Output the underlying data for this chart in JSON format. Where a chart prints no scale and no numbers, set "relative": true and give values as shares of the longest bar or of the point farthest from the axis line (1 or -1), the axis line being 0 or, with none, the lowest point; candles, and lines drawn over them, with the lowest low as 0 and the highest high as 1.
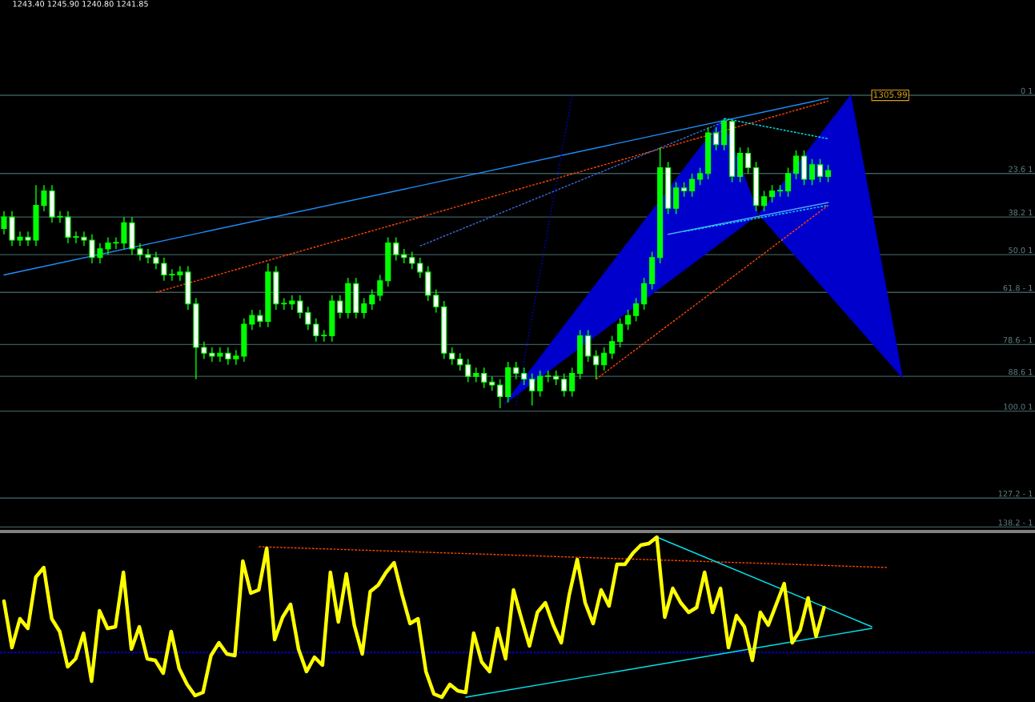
{
  "chart_data": [
    {
      "type": "candlestick",
      "relative": true,
      "tick_labels": false,
      "annotations": [
        "1243.40 1245.90 1240.80 1241.85",
        {
          "text": "1305.99",
          "y": 1.08
        },
        "0 1",
        "23.6 1",
        "38.2 1",
        "50.0 1",
        "61.8 - 1",
        "78.6 - 1",
        "88.6 1",
        "100.0 1",
        "127.2 - 1",
        "138.2 - 1"
      ],
      "categories": [
        null,
        null,
        null,
        null,
        null,
        null,
        null,
        null,
        null,
        null,
        null,
        null,
        null,
        null,
        null,
        null,
        null,
        null,
        null,
        null,
        null,
        null,
        null,
        null,
        null,
        null,
        null,
        null,
        null,
        null,
        null,
        null,
        null,
        null,
        null,
        null,
        null,
        null,
        null,
        null,
        null,
        null,
        null,
        null,
        null,
        null,
        null,
        null,
        null,
        null,
        null,
        null,
        null,
        null,
        null,
        null,
        null,
        null,
        null,
        null,
        null,
        null,
        null,
        null,
        null,
        null,
        null,
        null,
        null,
        null,
        null,
        null,
        null,
        null,
        null,
        null,
        null,
        null,
        null,
        null,
        null,
        null,
        null,
        null,
        null,
        null,
        null,
        null,
        null,
        null,
        null,
        null,
        null,
        null,
        null,
        null,
        null,
        null,
        null,
        null,
        null,
        null,
        null,
        null
      ],
      "ohlc": [
        [
          0.62,
          0.68,
          0.6,
          0.66
        ],
        [
          0.66,
          0.68,
          0.56,
          0.58
        ],
        [
          0.58,
          0.61,
          0.56,
          0.59
        ],
        [
          0.59,
          0.61,
          0.56,
          0.58
        ],
        [
          0.58,
          0.77,
          0.56,
          0.7
        ],
        [
          0.7,
          0.77,
          0.68,
          0.75
        ],
        [
          0.75,
          0.77,
          0.64,
          0.66
        ],
        [
          0.66,
          0.68,
          0.64,
          0.66
        ],
        [
          0.66,
          0.68,
          0.57,
          0.59
        ],
        [
          0.59,
          0.61,
          0.57,
          0.59
        ],
        [
          0.59,
          0.61,
          0.56,
          0.58
        ],
        [
          0.58,
          0.6,
          0.5,
          0.52
        ],
        [
          0.52,
          0.57,
          0.5,
          0.55
        ],
        [
          0.55,
          0.59,
          0.53,
          0.57
        ],
        [
          0.57,
          0.59,
          0.55,
          0.57
        ],
        [
          0.57,
          0.66,
          0.55,
          0.64
        ],
        [
          0.64,
          0.66,
          0.53,
          0.55
        ],
        [
          0.55,
          0.57,
          0.51,
          0.53
        ],
        [
          0.53,
          0.55,
          0.5,
          0.52
        ],
        [
          0.52,
          0.54,
          0.48,
          0.5
        ],
        [
          0.5,
          0.52,
          0.44,
          0.46
        ],
        [
          0.46,
          0.48,
          0.44,
          0.46
        ],
        [
          0.46,
          0.49,
          0.44,
          0.47
        ],
        [
          0.47,
          0.49,
          0.34,
          0.36
        ],
        [
          0.36,
          0.38,
          0.1,
          0.21
        ],
        [
          0.21,
          0.23,
          0.17,
          0.19
        ],
        [
          0.19,
          0.21,
          0.16,
          0.18
        ],
        [
          0.18,
          0.21,
          0.16,
          0.19
        ],
        [
          0.19,
          0.21,
          0.15,
          0.17
        ],
        [
          0.17,
          0.2,
          0.15,
          0.18
        ],
        [
          0.18,
          0.31,
          0.16,
          0.29
        ],
        [
          0.29,
          0.34,
          0.27,
          0.32
        ],
        [
          0.32,
          0.34,
          0.28,
          0.3
        ],
        [
          0.3,
          0.5,
          0.28,
          0.47
        ],
        [
          0.47,
          0.49,
          0.34,
          0.36
        ],
        [
          0.36,
          0.38,
          0.34,
          0.36
        ],
        [
          0.36,
          0.39,
          0.34,
          0.37
        ],
        [
          0.37,
          0.39,
          0.31,
          0.33
        ],
        [
          0.33,
          0.35,
          0.27,
          0.29
        ],
        [
          0.29,
          0.31,
          0.23,
          0.25
        ],
        [
          0.25,
          0.27,
          0.23,
          0.25
        ],
        [
          0.25,
          0.39,
          0.23,
          0.37
        ],
        [
          0.37,
          0.39,
          0.31,
          0.33
        ],
        [
          0.33,
          0.45,
          0.31,
          0.43
        ],
        [
          0.43,
          0.45,
          0.31,
          0.33
        ],
        [
          0.33,
          0.38,
          0.31,
          0.36
        ],
        [
          0.36,
          0.41,
          0.34,
          0.39
        ],
        [
          0.39,
          0.46,
          0.37,
          0.44
        ],
        [
          0.44,
          0.59,
          0.42,
          0.57
        ],
        [
          0.57,
          0.59,
          0.51,
          0.53
        ],
        [
          0.53,
          0.55,
          0.5,
          0.52
        ],
        [
          0.52,
          0.54,
          0.48,
          0.5
        ],
        [
          0.5,
          0.52,
          0.45,
          0.47
        ],
        [
          0.47,
          0.49,
          0.37,
          0.39
        ],
        [
          0.39,
          0.41,
          0.33,
          0.35
        ],
        [
          0.35,
          0.37,
          0.17,
          0.19
        ],
        [
          0.19,
          0.21,
          0.15,
          0.17
        ],
        [
          0.17,
          0.19,
          0.13,
          0.15
        ],
        [
          0.15,
          0.17,
          0.09,
          0.11
        ],
        [
          0.11,
          0.14,
          0.09,
          0.12
        ],
        [
          0.12,
          0.14,
          0.07,
          0.09
        ],
        [
          0.09,
          0.11,
          0.06,
          0.08
        ],
        [
          0.08,
          0.1,
          0.0,
          0.04
        ],
        [
          0.04,
          0.16,
          0.02,
          0.14
        ],
        [
          0.14,
          0.16,
          0.1,
          0.12
        ],
        [
          0.12,
          0.14,
          0.08,
          0.1
        ],
        [
          0.1,
          0.12,
          0.01,
          0.06
        ],
        [
          0.06,
          0.13,
          0.04,
          0.11
        ],
        [
          0.11,
          0.13,
          0.09,
          0.11
        ],
        [
          0.11,
          0.13,
          0.08,
          0.1
        ],
        [
          0.1,
          0.12,
          0.04,
          0.06
        ],
        [
          0.06,
          0.14,
          0.04,
          0.12
        ],
        [
          0.12,
          0.27,
          0.1,
          0.25
        ],
        [
          0.25,
          0.27,
          0.16,
          0.18
        ],
        [
          0.18,
          0.2,
          0.1,
          0.15
        ],
        [
          0.15,
          0.21,
          0.13,
          0.19
        ],
        [
          0.19,
          0.25,
          0.17,
          0.23
        ],
        [
          0.23,
          0.31,
          0.21,
          0.29
        ],
        [
          0.29,
          0.34,
          0.27,
          0.32
        ],
        [
          0.32,
          0.38,
          0.3,
          0.36
        ],
        [
          0.36,
          0.45,
          0.34,
          0.43
        ],
        [
          0.43,
          0.54,
          0.41,
          0.52
        ],
        [
          0.52,
          0.9,
          0.5,
          0.83
        ],
        [
          0.83,
          0.85,
          0.67,
          0.69
        ],
        [
          0.69,
          0.78,
          0.67,
          0.76
        ],
        [
          0.76,
          0.78,
          0.73,
          0.75
        ],
        [
          0.75,
          0.81,
          0.73,
          0.79
        ],
        [
          0.79,
          0.83,
          0.77,
          0.81
        ],
        [
          0.81,
          0.97,
          0.79,
          0.95
        ],
        [
          0.95,
          0.97,
          0.89,
          0.91
        ],
        [
          0.91,
          1.0,
          0.89,
          0.99
        ],
        [
          0.99,
          0.99,
          0.78,
          0.8
        ],
        [
          0.8,
          0.9,
          0.78,
          0.88
        ],
        [
          0.88,
          0.9,
          0.81,
          0.83
        ],
        [
          0.83,
          0.85,
          0.68,
          0.7
        ],
        [
          0.7,
          0.75,
          0.68,
          0.73
        ],
        [
          0.73,
          0.77,
          0.71,
          0.75
        ],
        [
          0.75,
          0.77,
          0.73,
          0.75
        ],
        [
          0.75,
          0.83,
          0.73,
          0.81
        ],
        [
          0.81,
          0.89,
          0.79,
          0.87
        ],
        [
          0.87,
          0.89,
          0.77,
          0.79
        ],
        [
          0.79,
          0.86,
          0.77,
          0.84
        ],
        [
          0.84,
          0.86,
          0.78,
          0.8
        ],
        [
          0.8,
          0.84,
          0.78,
          0.82
        ]
      ],
      "series": [
        {
          "type": "line",
          "color": "#1e90ff",
          "line_style": "solid",
          "values": [
            0.46,
            null,
            null,
            null,
            null,
            null,
            null,
            null,
            null,
            null,
            null,
            null,
            null,
            null,
            null,
            null,
            null,
            null,
            null,
            null,
            null,
            null,
            null,
            null,
            null,
            null,
            null,
            null,
            null,
            null,
            null,
            null,
            null,
            null,
            null,
            null,
            null,
            null,
            null,
            null,
            null,
            null,
            null,
            null,
            null,
            null,
            null,
            null,
            null,
            null,
            null,
            null,
            null,
            null,
            null,
            null,
            null,
            null,
            null,
            null,
            null,
            null,
            null,
            null,
            null,
            null,
            null,
            null,
            null,
            null,
            null,
            null,
            null,
            null,
            null,
            null,
            null,
            null,
            null,
            null,
            null,
            null,
            null,
            null,
            null,
            null,
            null,
            null,
            null,
            null,
            null,
            null,
            null,
            null,
            null,
            null,
            null,
            null,
            null,
            null,
            null,
            null,
            null,
            1.07
          ]
        },
        {
          "type": "line",
          "color": "#5aa0ff",
          "line_style": "solid",
          "values": [
            null,
            null,
            null,
            null,
            null,
            null,
            null,
            null,
            null,
            null,
            null,
            null,
            null,
            null,
            null,
            null,
            null,
            null,
            null,
            null,
            null,
            null,
            null,
            null,
            null,
            null,
            null,
            null,
            null,
            null,
            null,
            null,
            null,
            null,
            null,
            null,
            null,
            null,
            null,
            null,
            null,
            null,
            null,
            null,
            null,
            null,
            null,
            null,
            null,
            null,
            null,
            null,
            null,
            null,
            null,
            null,
            null,
            null,
            null,
            null,
            null,
            null,
            null,
            null,
            null,
            null,
            null,
            null,
            null,
            null,
            null,
            null,
            null,
            null,
            null,
            null,
            null,
            null,
            null,
            null,
            null,
            null,
            null,
            0.6,
            null,
            null,
            null,
            null,
            null,
            null,
            null,
            null,
            null,
            null,
            null,
            null,
            null,
            null,
            null,
            null,
            null,
            null,
            null,
            0.71
          ]
        },
        {
          "type": "line",
          "color": "#ff4500",
          "line_style": "dashed",
          "values": [
            null,
            null,
            null,
            null,
            null,
            null,
            null,
            null,
            null,
            null,
            null,
            null,
            null,
            null,
            null,
            null,
            null,
            null,
            null,
            0.4,
            null,
            null,
            null,
            null,
            null,
            null,
            null,
            null,
            null,
            null,
            null,
            null,
            null,
            null,
            null,
            null,
            null,
            null,
            null,
            null,
            null,
            null,
            null,
            null,
            null,
            null,
            null,
            null,
            null,
            null,
            null,
            null,
            null,
            null,
            null,
            null,
            null,
            null,
            null,
            null,
            null,
            null,
            null,
            null,
            null,
            null,
            null,
            null,
            null,
            null,
            null,
            null,
            null,
            null,
            null,
            null,
            null,
            null,
            null,
            null,
            null,
            null,
            null,
            null,
            null,
            null,
            null,
            null,
            null,
            null,
            null,
            null,
            null,
            null,
            null,
            null,
            null,
            null,
            null,
            null,
            null,
            null,
            null,
            1.06
          ]
        },
        {
          "type": "line",
          "color": "#ff4500",
          "line_style": "dashed",
          "values": [
            null,
            null,
            null,
            null,
            null,
            null,
            null,
            null,
            null,
            null,
            null,
            null,
            null,
            null,
            null,
            null,
            null,
            null,
            null,
            null,
            null,
            null,
            null,
            null,
            null,
            null,
            null,
            null,
            null,
            null,
            null,
            null,
            null,
            null,
            null,
            null,
            null,
            null,
            null,
            null,
            null,
            null,
            null,
            null,
            null,
            null,
            null,
            null,
            null,
            null,
            null,
            null,
            null,
            null,
            null,
            null,
            null,
            null,
            null,
            null,
            null,
            null,
            null,
            null,
            null,
            null,
            null,
            null,
            null,
            null,
            null,
            null,
            null,
            null,
            0.1,
            null,
            null,
            null,
            null,
            null,
            null,
            null,
            null,
            null,
            null,
            null,
            null,
            null,
            null,
            null,
            null,
            null,
            null,
            null,
            null,
            null,
            null,
            null,
            null,
            null,
            null,
            null,
            null,
            0.7
          ]
        },
        {
          "type": "line",
          "color": "#4169e1",
          "line_style": "dashed",
          "values": [
            null,
            null,
            null,
            null,
            null,
            null,
            null,
            null,
            null,
            null,
            null,
            null,
            null,
            null,
            null,
            null,
            null,
            null,
            null,
            null,
            null,
            null,
            null,
            null,
            null,
            null,
            null,
            null,
            null,
            null,
            null,
            null,
            null,
            null,
            null,
            null,
            null,
            null,
            null,
            null,
            null,
            null,
            null,
            null,
            null,
            null,
            null,
            null,
            null,
            null,
            null,
            null,
            0.56,
            null,
            null,
            null,
            null,
            null,
            null,
            null,
            null,
            null,
            null,
            null,
            null,
            null,
            null,
            null,
            null,
            null,
            null,
            null,
            null,
            null,
            null,
            null,
            null,
            null,
            null,
            null,
            null,
            null,
            null,
            null,
            null,
            null,
            null,
            null,
            null,
            null,
            null,
            1.0,
            null,
            null,
            null,
            null,
            null,
            null,
            null,
            null,
            null,
            null,
            null,
            null
          ]
        },
        {
          "type": "line",
          "color": "#0000ff",
          "line_style": "dotted",
          "values": [
            null,
            null,
            null,
            null,
            null,
            null,
            null,
            null,
            null,
            null,
            null,
            null,
            null,
            null,
            null,
            null,
            null,
            null,
            null,
            null,
            null,
            null,
            null,
            null,
            null,
            null,
            null,
            null,
            null,
            null,
            null,
            null,
            null,
            null,
            null,
            null,
            null,
            null,
            null,
            null,
            null,
            null,
            null,
            null,
            null,
            null,
            null,
            null,
            null,
            null,
            null,
            null,
            null,
            null,
            null,
            null,
            null,
            null,
            null,
            null,
            null,
            null,
            null,
            null,
            0.01,
            null,
            null,
            null,
            null,
            null,
            null,
            1.08,
            null,
            null,
            null,
            null,
            null,
            null,
            null,
            null,
            null,
            null,
            null,
            null,
            null,
            null,
            null,
            null,
            null,
            null,
            null,
            null,
            null,
            null,
            null,
            null,
            null,
            null,
            null,
            null,
            null,
            null,
            null,
            null
          ]
        },
        {
          "type": "line",
          "color": "#00e5ee",
          "line_style": "dashed",
          "values": [
            null,
            null,
            null,
            null,
            null,
            null,
            null,
            null,
            null,
            null,
            null,
            null,
            null,
            null,
            null,
            null,
            null,
            null,
            null,
            null,
            null,
            null,
            null,
            null,
            null,
            null,
            null,
            null,
            null,
            null,
            null,
            null,
            null,
            null,
            null,
            null,
            null,
            null,
            null,
            null,
            null,
            null,
            null,
            null,
            null,
            null,
            null,
            null,
            null,
            null,
            null,
            null,
            null,
            null,
            null,
            null,
            null,
            null,
            null,
            null,
            null,
            null,
            null,
            null,
            null,
            null,
            null,
            null,
            null,
            null,
            null,
            null,
            null,
            null,
            null,
            null,
            null,
            null,
            null,
            null,
            null,
            null,
            null,
            null,
            null,
            null,
            null,
            null,
            null,
            null,
            1.0,
            null,
            null,
            null,
            null,
            null,
            null,
            null,
            null,
            null,
            null,
            null,
            null,
            0.93
          ]
        },
        {
          "type": "line",
          "color": "#00e5ee",
          "line_style": "dashed",
          "values": [
            null,
            null,
            null,
            null,
            null,
            null,
            null,
            null,
            null,
            null,
            null,
            null,
            null,
            null,
            null,
            null,
            null,
            null,
            null,
            null,
            null,
            null,
            null,
            null,
            null,
            null,
            null,
            null,
            null,
            null,
            null,
            null,
            null,
            null,
            null,
            null,
            null,
            null,
            null,
            null,
            null,
            null,
            null,
            null,
            null,
            null,
            null,
            null,
            null,
            null,
            null,
            null,
            null,
            null,
            null,
            null,
            null,
            null,
            null,
            null,
            null,
            null,
            null,
            null,
            null,
            null,
            null,
            null,
            null,
            null,
            null,
            null,
            null,
            null,
            null,
            null,
            null,
            null,
            null,
            null,
            null,
            null,
            null,
            null,
            null,
            0.61,
            null,
            null,
            null,
            null,
            null,
            null,
            null,
            null,
            null,
            null,
            null,
            null,
            null,
            null,
            null,
            null,
            null,
            0.7
          ]
        }
      ],
      "ref_lines": [
        {
          "axis": "y",
          "value": 1.08,
          "color": "#3c5a5a"
        },
        {
          "axis": "y",
          "value": 0.81,
          "color": "#3c5a5a"
        },
        {
          "axis": "y",
          "value": 0.66,
          "color": "#3c5a5a"
        },
        {
          "axis": "y",
          "value": 0.53,
          "color": "#3c5a5a"
        },
        {
          "axis": "y",
          "value": 0.4,
          "color": "#3c5a5a"
        },
        {
          "axis": "y",
          "value": 0.22,
          "color": "#3c5a5a"
        },
        {
          "axis": "y",
          "value": 0.11,
          "color": "#3c5a5a"
        },
        {
          "axis": "y",
          "value": -0.01,
          "color": "#3c5a5a"
        },
        {
          "axis": "y",
          "value": -0.31,
          "color": "#3c5a5a"
        },
        {
          "axis": "y",
          "value": -0.41,
          "color": "#3c5a5a"
        }
      ]
    },
    {
      "type": "line",
      "relative": true,
      "tick_labels": false,
      "categories": [
        null,
        null,
        null,
        null,
        null,
        null,
        null,
        null,
        null,
        null,
        null,
        null,
        null,
        null,
        null,
        null,
        null,
        null,
        null,
        null,
        null,
        null,
        null,
        null,
        null,
        null,
        null,
        null,
        null,
        null,
        null,
        null,
        null,
        null,
        null,
        null,
        null,
        null,
        null,
        null,
        null,
        null,
        null,
        null,
        null,
        null,
        null,
        null,
        null,
        null,
        null,
        null,
        null,
        null,
        null,
        null,
        null,
        null,
        null,
        null,
        null,
        null,
        null,
        null,
        null,
        null,
        null,
        null,
        null,
        null,
        null,
        null,
        null,
        null,
        null,
        null,
        null,
        null,
        null,
        null,
        null,
        null,
        null,
        null,
        null,
        null,
        null,
        null,
        null,
        null,
        null,
        null,
        null,
        null,
        null,
        null,
        null,
        null,
        null,
        null,
        null,
        null,
        null,
        null,
        null,
        null,
        null,
        null,
        null,
        null,
        null,
        null,
        null,
        null,
        null,
        null,
        null,
        null,
        null,
        null,
        null,
        null,
        null,
        null,
        null,
        null,
        null,
        null,
        null,
        null
      ],
      "series": [
        {
          "color": "#ffff00",
          "values": [
            0.6,
            0.31,
            0.49,
            0.43,
            0.75,
            0.81,
            0.49,
            0.41,
            0.19,
            0.24,
            0.4,
            0.1,
            0.54,
            0.43,
            0.44,
            0.78,
            0.3,
            0.44,
            0.24,
            0.23,
            0.15,
            0.41,
            0.18,
            0.08,
            0.01,
            0.03,
            0.26,
            0.34,
            0.27,
            0.26,
            0.85,
            0.65,
            0.67,
            0.93,
            0.36,
            0.5,
            0.58,
            0.3,
            0.16,
            0.25,
            0.2,
            0.78,
            0.47,
            0.77,
            0.45,
            0.27,
            0.66,
            0.7,
            0.78,
            0.84,
            0.64,
            0.46,
            0.49,
            0.16,
            0.02,
            0.0,
            0.08,
            0.04,
            0.03,
            0.4,
            0.22,
            0.16,
            0.43,
            0.24,
            0.67,
            0.49,
            0.32,
            0.53,
            0.59,
            0.45,
            0.34,
            0.64,
            0.86,
            0.59,
            0.46,
            0.67,
            0.57,
            0.83,
            0.83,
            0.9,
            0.95,
            0.96,
            1.0,
            0.5,
            0.68,
            0.59,
            0.53,
            0.56,
            0.78,
            0.53,
            0.68,
            0.31,
            0.51,
            0.44,
            0.23,
            0.53,
            0.45,
            0.58,
            0.71,
            0.34,
            0.42,
            0.62,
            0.38,
            0.56,
            null,
            null,
            null,
            null,
            null,
            null,
            null,
            null,
            null,
            null,
            null,
            null,
            null,
            null,
            null,
            null,
            null,
            null,
            null,
            null,
            null,
            null,
            null,
            null,
            null,
            null
          ]
        },
        {
          "color": "#ff4500",
          "line_style": "dashed",
          "values": [
            null,
            null,
            null,
            null,
            null,
            null,
            null,
            null,
            null,
            null,
            null,
            null,
            null,
            null,
            null,
            null,
            null,
            null,
            null,
            null,
            null,
            null,
            null,
            null,
            null,
            null,
            null,
            null,
            null,
            null,
            null,
            null,
            0.94,
            null,
            null,
            null,
            null,
            null,
            null,
            null,
            null,
            null,
            null,
            null,
            null,
            null,
            null,
            null,
            null,
            null,
            null,
            null,
            null,
            null,
            null,
            null,
            null,
            null,
            null,
            null,
            null,
            null,
            null,
            null,
            null,
            null,
            null,
            null,
            null,
            null,
            null,
            null,
            null,
            null,
            null,
            null,
            null,
            null,
            null,
            null,
            null,
            null,
            null,
            null,
            null,
            null,
            null,
            null,
            null,
            null,
            null,
            null,
            null,
            null,
            null,
            null,
            null,
            null,
            null,
            null,
            null,
            null,
            null,
            null,
            null,
            null,
            null,
            null,
            null,
            null,
            null,
            0.81,
            null,
            null,
            null,
            null,
            null,
            null,
            null,
            null,
            null,
            null,
            null,
            null,
            null,
            null,
            null,
            null,
            null,
            null
          ]
        },
        {
          "color": "#00e5ee",
          "line_style": "solid",
          "values": [
            null,
            null,
            null,
            null,
            null,
            null,
            null,
            null,
            null,
            null,
            null,
            null,
            null,
            null,
            null,
            null,
            null,
            null,
            null,
            null,
            null,
            null,
            null,
            null,
            null,
            null,
            null,
            null,
            null,
            null,
            null,
            null,
            null,
            null,
            null,
            null,
            null,
            null,
            null,
            null,
            null,
            null,
            null,
            null,
            null,
            null,
            null,
            null,
            null,
            null,
            null,
            null,
            null,
            null,
            null,
            null,
            null,
            null,
            null,
            null,
            null,
            null,
            null,
            null,
            null,
            null,
            null,
            null,
            null,
            null,
            null,
            null,
            null,
            null,
            null,
            null,
            null,
            null,
            null,
            null,
            null,
            null,
            1.0,
            null,
            null,
            null,
            null,
            null,
            null,
            null,
            null,
            null,
            null,
            null,
            null,
            null,
            null,
            null,
            null,
            null,
            null,
            null,
            null,
            null,
            null,
            null,
            null,
            null,
            null,
            0.44,
            null,
            null,
            null,
            null,
            null,
            null,
            null,
            null,
            null,
            null,
            null,
            null,
            null,
            null,
            null,
            null,
            null,
            null,
            null,
            null
          ]
        },
        {
          "color": "#00e5ee",
          "line_style": "solid",
          "values": [
            null,
            null,
            null,
            null,
            null,
            null,
            null,
            null,
            null,
            null,
            null,
            null,
            null,
            null,
            null,
            null,
            null,
            null,
            null,
            null,
            null,
            null,
            null,
            null,
            null,
            null,
            null,
            null,
            null,
            null,
            null,
            null,
            null,
            null,
            null,
            null,
            null,
            null,
            null,
            null,
            null,
            null,
            null,
            null,
            null,
            null,
            null,
            null,
            null,
            null,
            null,
            null,
            null,
            null,
            null,
            null,
            null,
            null,
            0.0,
            null,
            null,
            null,
            null,
            null,
            null,
            null,
            null,
            null,
            null,
            null,
            null,
            null,
            null,
            null,
            null,
            null,
            null,
            null,
            null,
            null,
            null,
            null,
            null,
            null,
            null,
            null,
            null,
            null,
            null,
            null,
            null,
            null,
            null,
            null,
            null,
            null,
            null,
            null,
            null,
            null,
            null,
            null,
            null,
            null,
            null,
            null,
            null,
            null,
            null,
            0.43,
            null,
            null,
            null,
            null,
            null,
            null,
            null,
            null,
            null,
            null,
            null,
            null,
            null,
            null,
            null,
            null,
            null,
            null,
            null,
            null
          ]
        }
      ],
      "ref_lines": [
        {
          "axis": "y",
          "value": 0.28,
          "color": "#0000ff",
          "line_style": "dashed"
        }
      ]
    }
  ]
}
